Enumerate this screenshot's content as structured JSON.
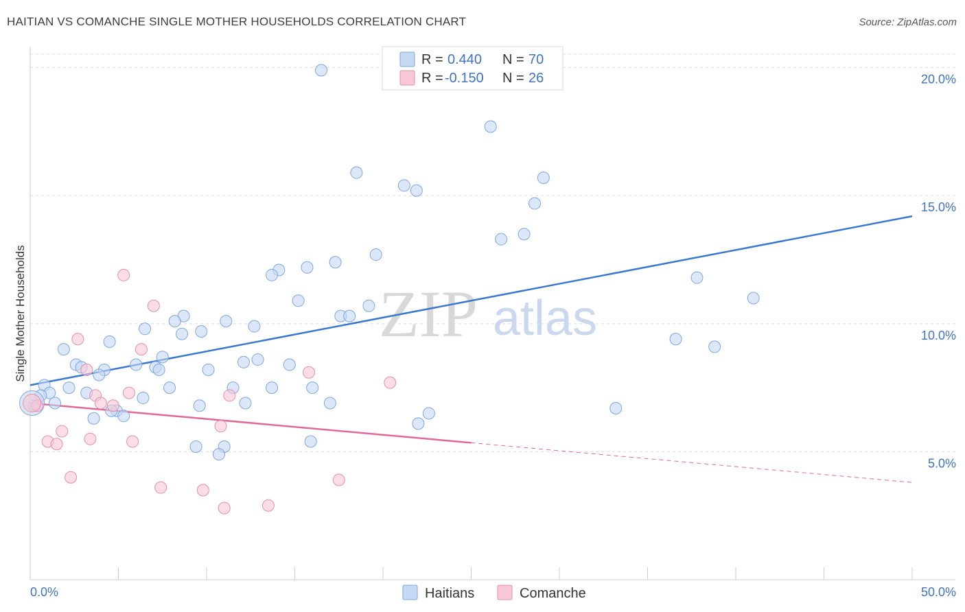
{
  "header": {
    "title": "HAITIAN VS COMANCHE SINGLE MOTHER HOUSEHOLDS CORRELATION CHART",
    "source": "Source: ZipAtlas.com"
  },
  "watermark": {
    "part1": "ZIP",
    "part2": "atlas"
  },
  "legend_top": [
    {
      "r_label": "R =",
      "r_value": "0.440",
      "n_label": "N =",
      "n_value": "70",
      "color": "#7ea6e0",
      "fill": "#c5d9f3"
    },
    {
      "r_label": "R =",
      "r_value": "-0.150",
      "n_label": "N =",
      "n_value": "26",
      "color": "#e58fa9",
      "fill": "#f7c7d5"
    }
  ],
  "legend_bottom": [
    {
      "label": "Haitians",
      "fill": "#c5d9f3",
      "stroke": "#7ea6e0"
    },
    {
      "label": "Comanche",
      "fill": "#f7c7d5",
      "stroke": "#e58fa9"
    }
  ],
  "chart_data": {
    "type": "scatter",
    "title": "HAITIAN VS COMANCHE SINGLE MOTHER HOUSEHOLDS CORRELATION CHART",
    "xlabel": "",
    "ylabel": "Single Mother Households",
    "xlim": [
      0,
      50
    ],
    "ylim": [
      0,
      20.5
    ],
    "x_tick_labels": [
      "0.0%",
      "50.0%"
    ],
    "y_ticks": [
      5,
      10,
      15,
      20
    ],
    "y_tick_labels": [
      "5.0%",
      "10.0%",
      "15.0%",
      "20.0%"
    ],
    "grid": true,
    "legend_position": "top-center",
    "series": [
      {
        "name": "Haitians",
        "color": "#3a78d0",
        "r": 0.44,
        "n": 70,
        "trend": {
          "x": [
            0,
            50
          ],
          "y": [
            7.6,
            14.2
          ],
          "dashed_from": null
        },
        "points": [
          [
            16.5,
            19.9
          ],
          [
            26.1,
            17.7
          ],
          [
            18.5,
            15.9
          ],
          [
            29.1,
            15.7
          ],
          [
            21.2,
            15.4
          ],
          [
            21.9,
            15.2
          ],
          [
            28.6,
            14.7
          ],
          [
            28.0,
            13.5
          ],
          [
            26.7,
            13.3
          ],
          [
            19.6,
            12.7
          ],
          [
            17.3,
            12.4
          ],
          [
            15.7,
            12.2
          ],
          [
            14.1,
            12.1
          ],
          [
            13.7,
            11.9
          ],
          [
            37.8,
            11.8
          ],
          [
            41.0,
            11.0
          ],
          [
            15.2,
            10.9
          ],
          [
            19.2,
            10.7
          ],
          [
            8.7,
            10.3
          ],
          [
            17.6,
            10.3
          ],
          [
            18.1,
            10.3
          ],
          [
            8.2,
            10.1
          ],
          [
            11.1,
            10.1
          ],
          [
            12.7,
            9.9
          ],
          [
            6.5,
            9.8
          ],
          [
            9.7,
            9.7
          ],
          [
            8.6,
            9.6
          ],
          [
            36.6,
            9.4
          ],
          [
            4.5,
            9.3
          ],
          [
            38.8,
            9.1
          ],
          [
            1.9,
            9.0
          ],
          [
            7.5,
            8.7
          ],
          [
            12.9,
            8.6
          ],
          [
            12.1,
            8.5
          ],
          [
            2.6,
            8.4
          ],
          [
            6.0,
            8.4
          ],
          [
            14.7,
            8.4
          ],
          [
            2.9,
            8.3
          ],
          [
            7.1,
            8.3
          ],
          [
            7.3,
            8.2
          ],
          [
            10.1,
            8.2
          ],
          [
            4.2,
            8.2
          ],
          [
            3.9,
            8.0
          ],
          [
            0.8,
            7.6
          ],
          [
            2.2,
            7.5
          ],
          [
            7.9,
            7.5
          ],
          [
            11.5,
            7.5
          ],
          [
            13.7,
            7.5
          ],
          [
            16.0,
            7.5
          ],
          [
            3.2,
            7.3
          ],
          [
            1.1,
            7.3
          ],
          [
            0.6,
            7.2
          ],
          [
            6.4,
            7.1
          ],
          [
            1.4,
            6.9
          ],
          [
            12.2,
            6.9
          ],
          [
            17.0,
            6.9
          ],
          [
            9.6,
            6.8
          ],
          [
            33.2,
            6.7
          ],
          [
            4.9,
            6.6
          ],
          [
            4.6,
            6.6
          ],
          [
            22.6,
            6.5
          ],
          [
            5.3,
            6.4
          ],
          [
            3.6,
            6.3
          ],
          [
            22.0,
            6.1
          ],
          [
            15.9,
            5.4
          ],
          [
            0.2,
            6.8
          ],
          [
            9.4,
            5.2
          ],
          [
            11.0,
            5.2
          ],
          [
            10.7,
            4.9
          ],
          [
            0.1,
            6.9
          ]
        ]
      },
      {
        "name": "Comanche",
        "color": "#e0689a",
        "r": -0.15,
        "n": 26,
        "trend": {
          "x": [
            0,
            50
          ],
          "y": [
            6.9,
            3.8
          ],
          "dashed_from": 25
        },
        "points": [
          [
            5.3,
            11.9
          ],
          [
            7.0,
            10.7
          ],
          [
            2.7,
            9.4
          ],
          [
            6.3,
            9.0
          ],
          [
            3.2,
            8.2
          ],
          [
            15.8,
            8.1
          ],
          [
            20.4,
            7.7
          ],
          [
            5.6,
            7.3
          ],
          [
            11.3,
            7.2
          ],
          [
            3.7,
            7.2
          ],
          [
            4.0,
            6.9
          ],
          [
            4.7,
            6.8
          ],
          [
            0.4,
            6.8
          ],
          [
            10.8,
            6.0
          ],
          [
            1.8,
            5.8
          ],
          [
            3.4,
            5.5
          ],
          [
            1.0,
            5.4
          ],
          [
            1.5,
            5.3
          ],
          [
            5.8,
            5.4
          ],
          [
            2.3,
            4.0
          ],
          [
            17.5,
            3.9
          ],
          [
            7.4,
            3.6
          ],
          [
            9.8,
            3.5
          ],
          [
            13.5,
            2.9
          ],
          [
            11.0,
            2.8
          ],
          [
            0.1,
            6.9
          ]
        ]
      }
    ]
  }
}
